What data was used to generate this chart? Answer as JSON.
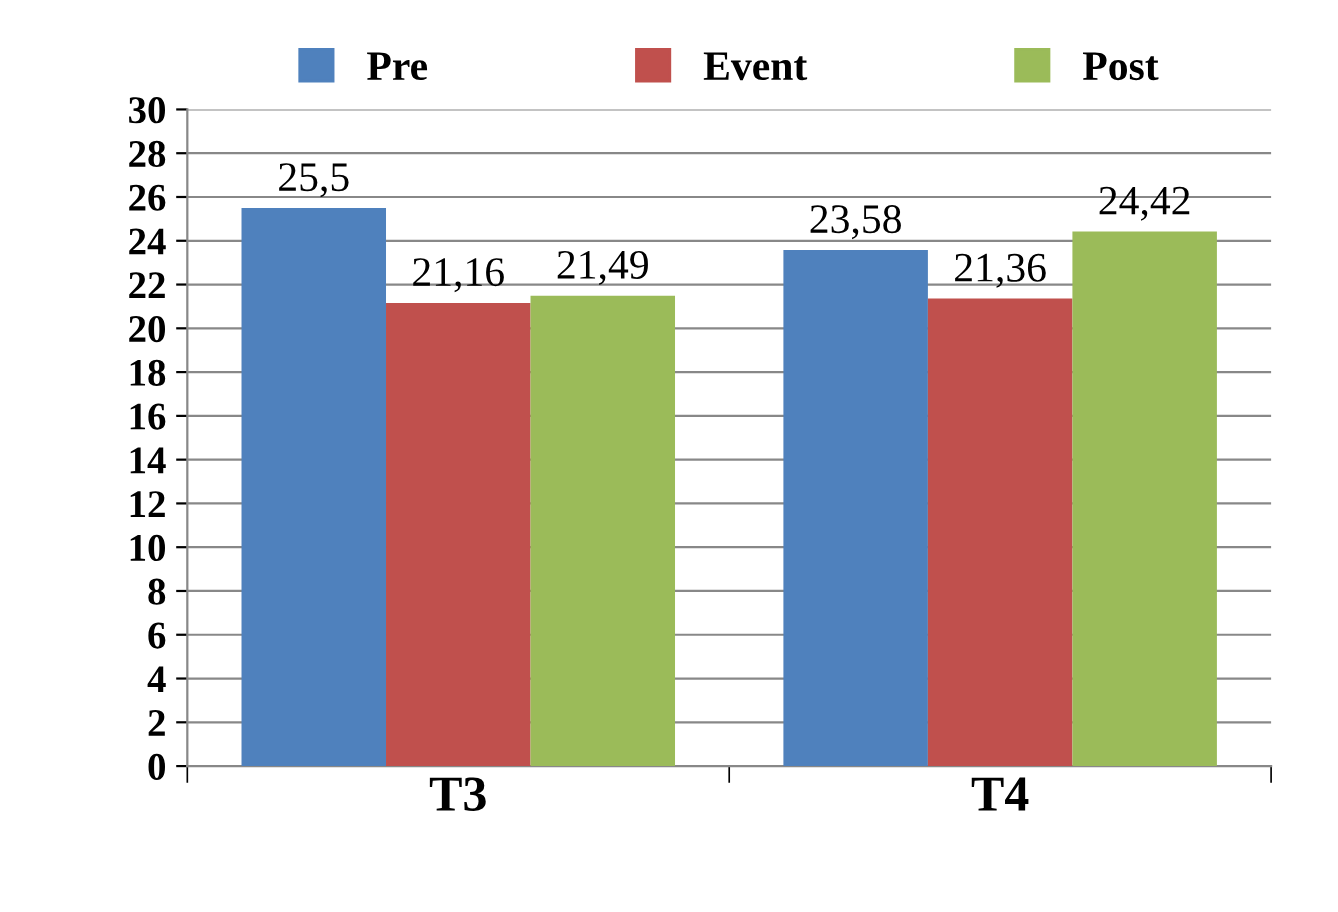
{
  "chart_data": {
    "type": "bar",
    "categories": [
      "T3",
      "T4"
    ],
    "series": [
      {
        "name": "Pre",
        "color": "#4f81bd",
        "values": [
          25.5,
          23.58
        ],
        "value_labels": [
          "25,5",
          "23,58"
        ]
      },
      {
        "name": "Event",
        "color": "#c0504d",
        "values": [
          21.16,
          21.36
        ],
        "value_labels": [
          "21,16",
          "21,36"
        ]
      },
      {
        "name": "Post",
        "color": "#9bbb59",
        "values": [
          21.49,
          24.42
        ],
        "value_labels": [
          "21,49",
          "24,42"
        ]
      }
    ],
    "ylim": [
      0,
      30
    ],
    "yticks": [
      0,
      2,
      4,
      6,
      8,
      10,
      12,
      14,
      16,
      18,
      20,
      22,
      24,
      26,
      28,
      30
    ],
    "grid": "y",
    "legend": "top"
  }
}
